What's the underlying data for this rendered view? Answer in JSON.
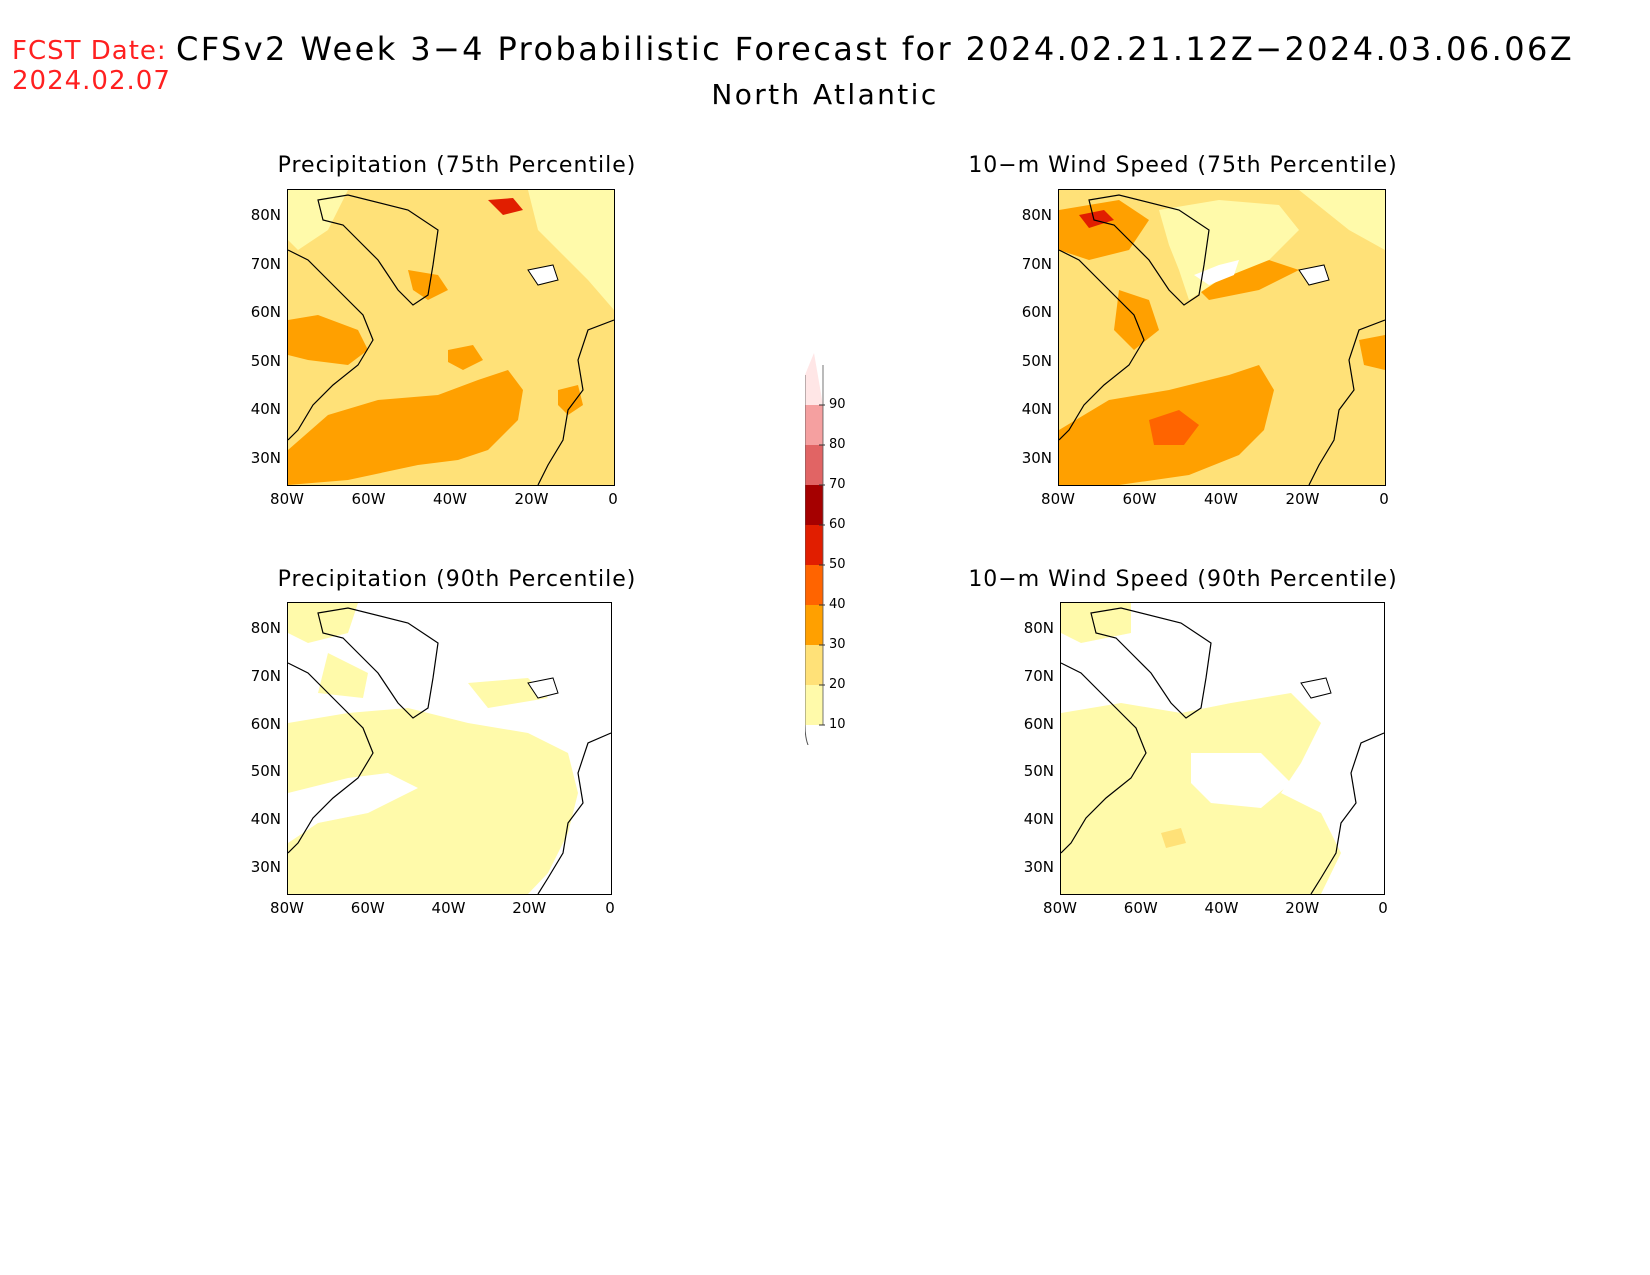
{
  "header": {
    "fcst_label": "FCST Date:",
    "fcst_date": "2024.02.07",
    "title": "CFSv2 Week 3−4 Probabilistic Forecast for 2024.02.21.12Z−2024.03.06.06Z",
    "region": "North Atlantic"
  },
  "axes": {
    "lat_labels": [
      "80N",
      "70N",
      "60N",
      "50N",
      "40N",
      "30N"
    ],
    "lon_labels": [
      "80W",
      "60W",
      "40W",
      "20W",
      "0"
    ]
  },
  "panels": [
    {
      "id": "precip-75",
      "title": "Precipitation (75th Percentile)"
    },
    {
      "id": "wind-75",
      "title": "10−m Wind Speed (75th Percentile)"
    },
    {
      "id": "precip-90",
      "title": "Precipitation (90th Percentile)"
    },
    {
      "id": "wind-90",
      "title": "10−m Wind Speed (90th Percentile)"
    }
  ],
  "colorbar": {
    "levels": [
      "10",
      "20",
      "30",
      "40",
      "50",
      "60",
      "70",
      "80",
      "90"
    ],
    "colors": [
      "#fffaaa",
      "#ffe178",
      "#ffa000",
      "#ff6400",
      "#e11e00",
      "#a50000",
      "#e16464",
      "#f5a0a0",
      "#ffe6e6"
    ]
  }
}
